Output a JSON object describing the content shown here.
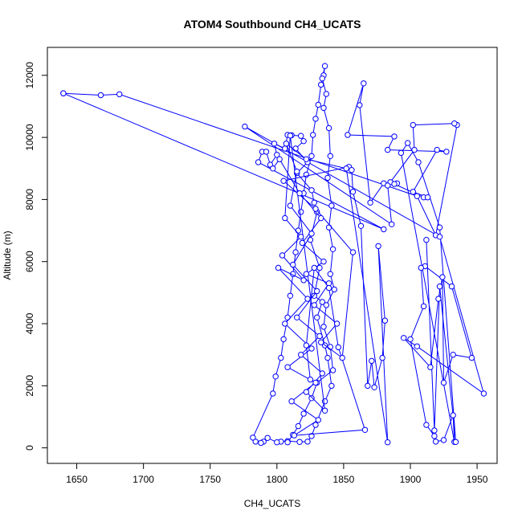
{
  "chart_data": {
    "type": "line",
    "title": "ATOM4 Southbound CH4_UCATS",
    "xlabel": "CH4_UCATS",
    "ylabel": "Altitude (m)",
    "xlim": [
      1628,
      1965
    ],
    "ylim": [
      -500,
      12900
    ],
    "xticks": [
      1650,
      1700,
      1750,
      1800,
      1850,
      1900,
      1950
    ],
    "yticks": [
      0,
      2000,
      4000,
      6000,
      8000,
      10000,
      12000
    ],
    "grid": false,
    "marker": "open-circle",
    "color": "#0000ff",
    "series": [
      {
        "name": "",
        "points": [
          [
            1640,
            11420
          ],
          [
            1668,
            11360
          ],
          [
            1682,
            11390
          ],
          [
            1905,
            8110
          ],
          [
            1919,
            6850
          ],
          [
            1935,
            10400
          ],
          [
            1933,
            10450
          ],
          [
            1902,
            10400
          ],
          [
            1903,
            9600
          ],
          [
            1885,
            8560
          ],
          [
            1890,
            8520
          ],
          [
            1888,
            8500
          ],
          [
            1910,
            8070
          ],
          [
            1913,
            8070
          ],
          [
            1902,
            8250
          ],
          [
            1920,
            9600
          ],
          [
            1927,
            9540
          ],
          [
            1883,
            9600
          ],
          [
            1888,
            10030
          ],
          [
            1853,
            10080
          ],
          [
            1865,
            11740
          ],
          [
            1862,
            11040
          ],
          [
            1870,
            7900
          ],
          [
            1880,
            8520
          ],
          [
            1883,
            8450
          ],
          [
            1886,
            7200
          ],
          [
            1776,
            10350
          ],
          [
            1922,
            6800
          ],
          [
            1955,
            1750
          ],
          [
            1905,
            3270
          ],
          [
            1895,
            3540
          ],
          [
            1915,
            2600
          ],
          [
            1921,
            4800
          ],
          [
            1924,
            5500
          ],
          [
            1925,
            2100
          ],
          [
            1932,
            3000
          ],
          [
            1946,
            2900
          ],
          [
            1931,
            5200
          ],
          [
            1911,
            5850
          ],
          [
            1908,
            5800
          ],
          [
            1910,
            4560
          ],
          [
            1900,
            3500
          ],
          [
            1912,
            740
          ],
          [
            1918,
            380
          ],
          [
            1919,
            200
          ],
          [
            1925,
            250
          ],
          [
            1932,
            1050
          ],
          [
            1933,
            190
          ],
          [
            1893,
            9500
          ],
          [
            1898,
            9820
          ],
          [
            1906,
            9200
          ],
          [
            1922,
            7100
          ],
          [
            1934,
            190
          ],
          [
            1922,
            5200
          ],
          [
            1918,
            560
          ],
          [
            1912,
            6700
          ]
        ]
      },
      {
        "name": "",
        "points": [
          [
            1640,
            11420
          ],
          [
            1880,
            7040
          ],
          [
            1786,
            9200
          ],
          [
            1789,
            9540
          ],
          [
            1792,
            9540
          ],
          [
            1795,
            9120
          ],
          [
            1800,
            9440
          ],
          [
            1798,
            9800
          ],
          [
            1806,
            9640
          ],
          [
            1808,
            10080
          ],
          [
            1811,
            10070
          ],
          [
            1818,
            10050
          ],
          [
            1820,
            9880
          ],
          [
            1814,
            9640
          ],
          [
            1823,
            9200
          ],
          [
            1815,
            8850
          ],
          [
            1826,
            8300
          ],
          [
            1828,
            7900
          ],
          [
            1830,
            7600
          ],
          [
            1825,
            6700
          ],
          [
            1832,
            5800
          ],
          [
            1828,
            4900
          ],
          [
            1834,
            4700
          ],
          [
            1830,
            4200
          ],
          [
            1836,
            3300
          ],
          [
            1838,
            2900
          ],
          [
            1841,
            2000
          ],
          [
            1836,
            1500
          ],
          [
            1829,
            740
          ],
          [
            1826,
            380
          ],
          [
            1823,
            200
          ],
          [
            1817,
            190
          ],
          [
            1808,
            220
          ],
          [
            1803,
            200
          ],
          [
            1800,
            180
          ],
          [
            1793,
            320
          ],
          [
            1790,
            200
          ],
          [
            1788,
            160
          ],
          [
            1784,
            200
          ],
          [
            1782,
            330
          ],
          [
            1797,
            1750
          ],
          [
            1799,
            2300
          ],
          [
            1803,
            2900
          ],
          [
            1805,
            3500
          ],
          [
            1808,
            4200
          ],
          [
            1810,
            4900
          ],
          [
            1812,
            5600
          ],
          [
            1814,
            6300
          ],
          [
            1816,
            7000
          ],
          [
            1818,
            7600
          ],
          [
            1820,
            8200
          ],
          [
            1822,
            8800
          ],
          [
            1826,
            9400
          ],
          [
            1827,
            10080
          ],
          [
            1829,
            10600
          ],
          [
            1831,
            11050
          ],
          [
            1833,
            11700
          ],
          [
            1835,
            12000
          ],
          [
            1836,
            12300
          ],
          [
            1834,
            11900
          ],
          [
            1837,
            11400
          ],
          [
            1835,
            10950
          ],
          [
            1839,
            10300
          ],
          [
            1840,
            9400
          ],
          [
            1838,
            8700
          ],
          [
            1841,
            7800
          ],
          [
            1839,
            7100
          ],
          [
            1842,
            6400
          ],
          [
            1840,
            5600
          ],
          [
            1843,
            5100
          ],
          [
            1837,
            4600
          ],
          [
            1835,
            3900
          ],
          [
            1840,
            3250
          ],
          [
            1842,
            2500
          ],
          [
            1830,
            2100
          ],
          [
            1826,
            1600
          ],
          [
            1820,
            1100
          ],
          [
            1816,
            700
          ],
          [
            1812,
            420
          ],
          [
            1808,
            180
          ]
        ]
      },
      {
        "name": "",
        "points": [
          [
            1797,
            9000
          ],
          [
            1802,
            9300
          ],
          [
            1817,
            8200
          ],
          [
            1833,
            7400
          ],
          [
            1819,
            6600
          ],
          [
            1835,
            6000
          ],
          [
            1822,
            5600
          ],
          [
            1839,
            5300
          ],
          [
            1828,
            4600
          ],
          [
            1845,
            4000
          ],
          [
            1833,
            3400
          ],
          [
            1849,
            2900
          ],
          [
            1857,
            6300
          ],
          [
            1829,
            7700
          ],
          [
            1805,
            8600
          ],
          [
            1854,
            9050
          ],
          [
            1856,
            8950
          ],
          [
            1857,
            8250
          ],
          [
            1863,
            7150
          ],
          [
            1868,
            2000
          ],
          [
            1871,
            2800
          ],
          [
            1873,
            1950
          ],
          [
            1879,
            2900
          ],
          [
            1881,
            4100
          ],
          [
            1876,
            6500
          ],
          [
            1883,
            180
          ],
          [
            1852,
            9000
          ],
          [
            1822,
            9300
          ],
          [
            1807,
            9800
          ],
          [
            1815,
            8900
          ],
          [
            1810,
            7800
          ],
          [
            1826,
            6900
          ],
          [
            1812,
            5900
          ],
          [
            1830,
            5050
          ],
          [
            1815,
            4200
          ],
          [
            1832,
            3600
          ],
          [
            1818,
            3000
          ],
          [
            1834,
            2400
          ],
          [
            1822,
            1800
          ],
          [
            1836,
            1200
          ],
          [
            1810,
            10060
          ],
          [
            1806,
            7400
          ],
          [
            1818,
            6800
          ],
          [
            1804,
            6200
          ],
          [
            1820,
            5400
          ],
          [
            1801,
            5800
          ],
          [
            1823,
            4800
          ],
          [
            1806,
            4000
          ],
          [
            1826,
            3200
          ],
          [
            1808,
            2600
          ],
          [
            1829,
            2100
          ],
          [
            1811,
            1500
          ],
          [
            1831,
            900
          ],
          [
            1813,
            400
          ],
          [
            1866,
            580
          ],
          [
            1846,
            3240
          ],
          [
            1839,
            5150
          ],
          [
            1828,
            5800
          ],
          [
            1822,
            3300
          ],
          [
            1825,
            2200
          ]
        ]
      }
    ]
  }
}
